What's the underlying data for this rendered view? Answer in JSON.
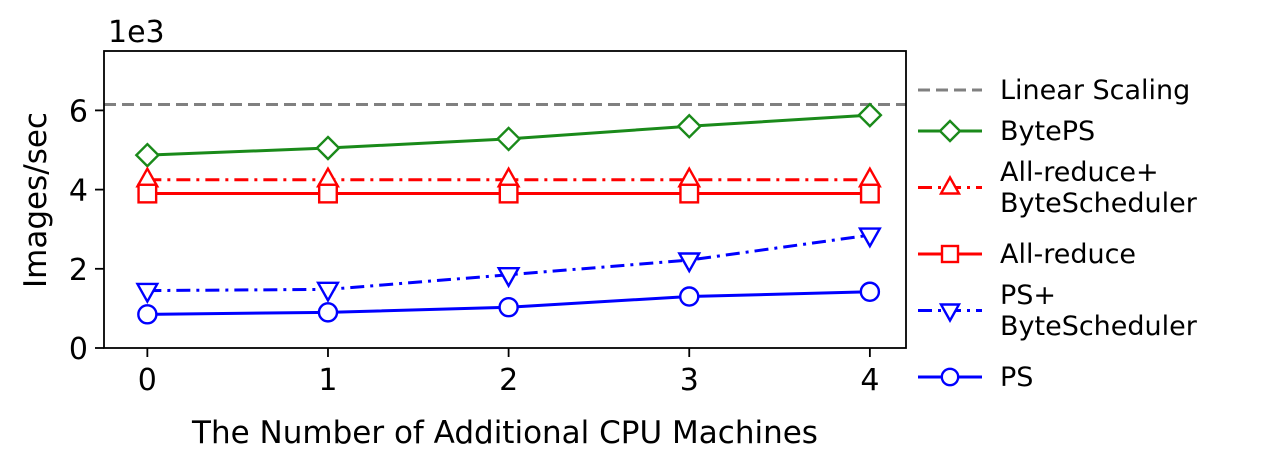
{
  "chart_data": {
    "type": "line",
    "xlabel": "The Number of Additional CPU Machines",
    "ylabel": "Images/sec",
    "y_multiplier_label": "1e3",
    "x": [
      0,
      1,
      2,
      3,
      4
    ],
    "x_ticks": [
      "0",
      "1",
      "2",
      "3",
      "4"
    ],
    "y_ticks": [
      "0",
      "2",
      "4",
      "6"
    ],
    "y_tick_values": [
      0,
      2,
      4,
      6
    ],
    "ylim": [
      0,
      7.5
    ],
    "xlim": [
      -0.24,
      4.2
    ],
    "grid": false,
    "legend_placement": "outside-right",
    "reference_lines": [
      {
        "name": "Linear Scaling",
        "y": 6.15,
        "color": "#808080",
        "dash": "dashed"
      }
    ],
    "series": [
      {
        "name": "BytePS",
        "values": [
          4.87,
          5.05,
          5.28,
          5.6,
          5.88
        ],
        "color": "#1a8a1a",
        "marker": "diamond",
        "dash": "solid"
      },
      {
        "name_lines": [
          "All-reduce+",
          "ByteScheduler"
        ],
        "values": [
          4.25,
          4.25,
          4.25,
          4.25,
          4.25
        ],
        "color": "#ff0000",
        "marker": "triangle-up",
        "dash": "dashdot"
      },
      {
        "name": "All-reduce",
        "values": [
          3.9,
          3.9,
          3.9,
          3.9,
          3.9
        ],
        "color": "#ff0000",
        "marker": "square",
        "dash": "solid"
      },
      {
        "name_lines": [
          "PS+",
          "ByteScheduler"
        ],
        "values": [
          1.45,
          1.48,
          1.85,
          2.22,
          2.85
        ],
        "color": "#0000ff",
        "marker": "triangle-down",
        "dash": "dashdot"
      },
      {
        "name": "PS",
        "values": [
          0.85,
          0.9,
          1.03,
          1.3,
          1.42
        ],
        "color": "#0000ff",
        "marker": "circle",
        "dash": "solid"
      }
    ]
  }
}
